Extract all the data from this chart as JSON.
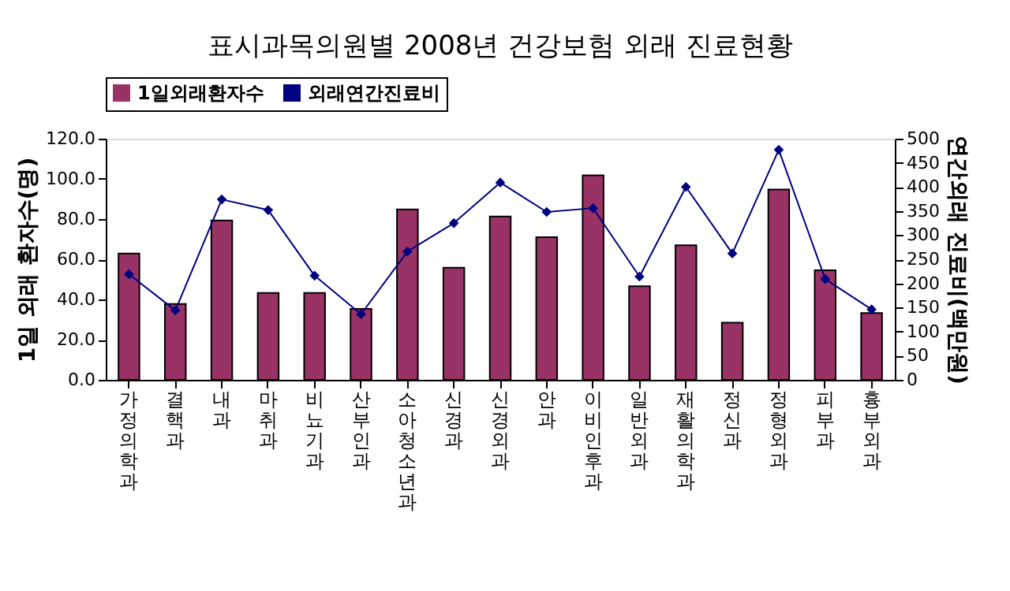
{
  "chart_data": {
    "type": "bar",
    "title": "표시과목의원별 2008년 건강보험 외래 진료현황",
    "categories": [
      "가정의학과",
      "결핵과",
      "내과",
      "마취과",
      "비뇨기과",
      "산부인과",
      "소아청소년과",
      "신경과",
      "신경외과",
      "안과",
      "이비인후과",
      "일반외과",
      "재활의학과",
      "정신과",
      "정형외과",
      "피부과",
      "흉부외과"
    ],
    "series": [
      {
        "name": "1일외래환자수",
        "color": "#993366",
        "values": [
          62.8,
          37.7,
          79.3,
          43.2,
          43.2,
          35.3,
          84.8,
          55.8,
          81.3,
          71.0,
          101.8,
          46.6,
          67.0,
          28.4,
          94.7,
          54.5,
          33.2
        ]
      },
      {
        "name": "외래연간진료비",
        "type": "line",
        "axis": "y2",
        "color": "#000080",
        "values": [
          219,
          144,
          374,
          352,
          216,
          136,
          266,
          325,
          409,
          348,
          356,
          214,
          400,
          262,
          477,
          209,
          146
        ]
      }
    ],
    "ylabel": "1일 외래 환자수(명)",
    "y2label": "연간외래 진료비(백만원)",
    "ylim": [
      0,
      120
    ],
    "yticks": [
      {
        "value": 0,
        "label": "0.0"
      },
      {
        "value": 20,
        "label": "20.0"
      },
      {
        "value": 40,
        "label": "40.0"
      },
      {
        "value": 60,
        "label": "60.0"
      },
      {
        "value": 80,
        "label": "80.0"
      },
      {
        "value": 100,
        "label": "100.0"
      },
      {
        "value": 120,
        "label": "120.0"
      }
    ],
    "y2lim": [
      0,
      500
    ],
    "y2ticks": [
      0,
      50,
      100,
      150,
      200,
      250,
      300,
      350,
      400,
      450,
      500
    ],
    "grid": false,
    "legend": "top",
    "marker": "diamond",
    "line_style": "solid"
  }
}
